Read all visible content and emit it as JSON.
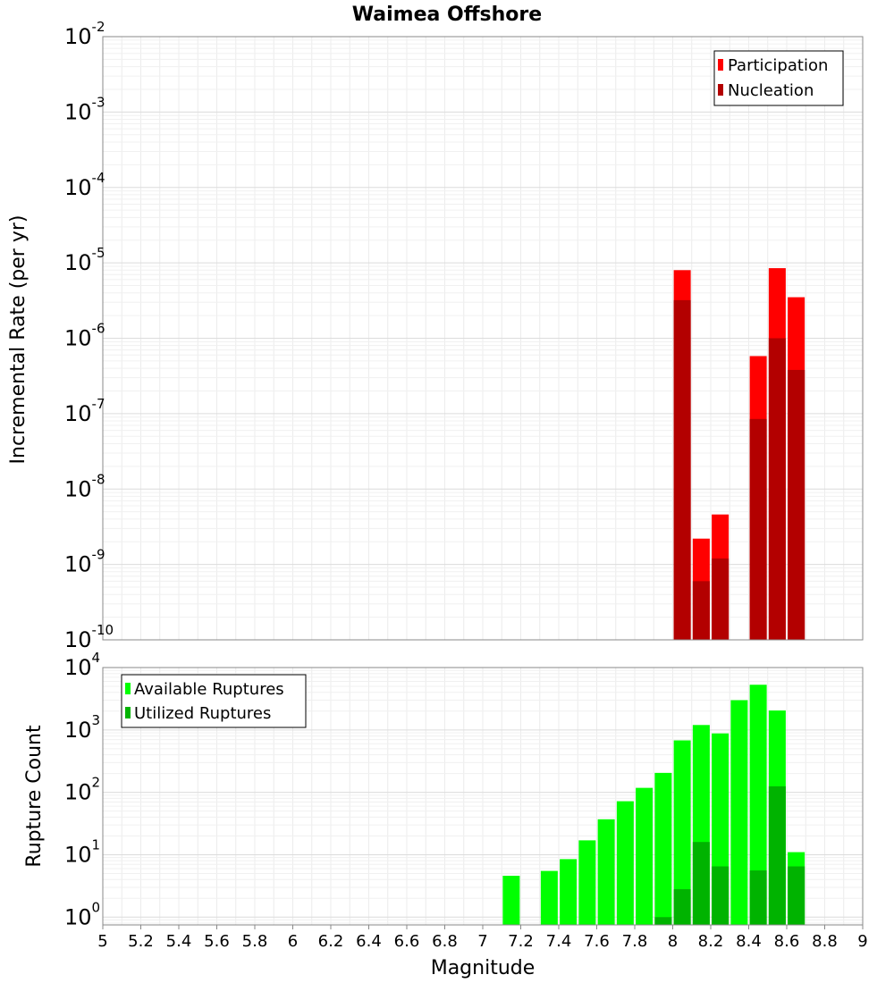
{
  "chart_data": [
    {
      "type": "bar",
      "title": "Waimea Offshore",
      "xlabel": "",
      "ylabel": "Incremental Rate (per yr)",
      "yscale": "log",
      "xlim": [
        5,
        9
      ],
      "ylim": [
        1e-10,
        0.01
      ],
      "ytick_mantissa": "10",
      "ytick_exponents": [
        "-10",
        "-9",
        "-8",
        "-7",
        "-6",
        "-5",
        "-4",
        "-3",
        "-2"
      ],
      "grid": true,
      "legend_position": "top-right",
      "x": [
        8.05,
        8.15,
        8.25,
        8.45,
        8.55,
        8.65
      ],
      "series": [
        {
          "name": "Participation",
          "color": "#ff0000",
          "values": [
            8e-06,
            2.2e-09,
            4.6e-09,
            5.8e-07,
            8.5e-06,
            3.5e-06
          ]
        },
        {
          "name": "Nucleation",
          "color": "#b30000",
          "values": [
            3.2e-06,
            6e-10,
            1.2e-09,
            8.5e-08,
            1e-06,
            3.8e-07
          ]
        }
      ]
    },
    {
      "type": "bar",
      "xlabel": "Magnitude",
      "ylabel": "Rupture Count",
      "yscale": "log",
      "xlim": [
        5,
        9
      ],
      "ylim": [
        0.75,
        10000.0
      ],
      "ytick_mantissa": "10",
      "ytick_exponents": [
        "0",
        "1",
        "2",
        "3",
        "4"
      ],
      "xticks": [
        "5",
        "5.2",
        "5.4",
        "5.6",
        "5.8",
        "6",
        "6.2",
        "6.4",
        "6.6",
        "6.8",
        "7",
        "7.2",
        "7.4",
        "7.6",
        "7.8",
        "8",
        "8.2",
        "8.4",
        "8.6",
        "8.8",
        "9"
      ],
      "grid": true,
      "legend_position": "top-left",
      "series": [
        {
          "name": "Available Ruptures",
          "color": "#00ff00",
          "x": [
            7.15,
            7.35,
            7.45,
            7.55,
            7.65,
            7.75,
            7.85,
            7.95,
            8.05,
            8.15,
            8.25,
            8.35,
            8.45,
            8.55,
            8.65
          ],
          "values": [
            4.6,
            5.5,
            8.5,
            17,
            37,
            72,
            118,
            205,
            680,
            1200,
            880,
            3000,
            5300,
            2050,
            11
          ]
        },
        {
          "name": "Utilized Ruptures",
          "color": "#00b300",
          "x": [
            7.95,
            8.05,
            8.15,
            8.25,
            8.45,
            8.55,
            8.65
          ],
          "values": [
            1.0,
            2.8,
            16,
            6.5,
            5.6,
            125,
            6.5
          ]
        }
      ]
    }
  ]
}
